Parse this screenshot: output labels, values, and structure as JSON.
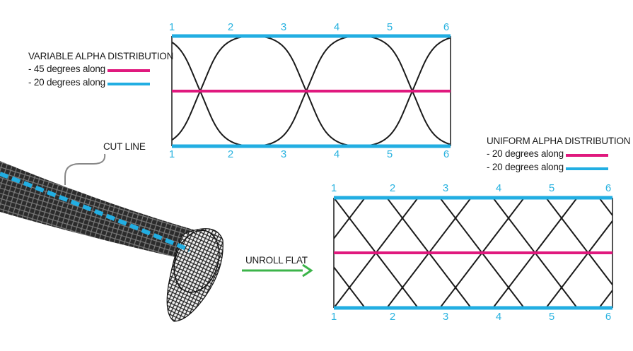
{
  "colors": {
    "accent_magenta": "#e0197e",
    "accent_cyan": "#22aee2",
    "arrow_green": "#3cb44a",
    "line_black": "#1a1a1a"
  },
  "variable": {
    "title": "VARIABLE ALPHA DISTRIBUTION",
    "legend": [
      {
        "label": "- 45 degrees along",
        "color": "#e0197e"
      },
      {
        "label": "- 20 degrees along",
        "color": "#22aee2"
      }
    ],
    "ticks_top": [
      "1",
      "2",
      "3",
      "4",
      "5",
      "6"
    ],
    "ticks_bottom": [
      "1",
      "2",
      "3",
      "4",
      "5",
      "6"
    ]
  },
  "uniform": {
    "title": "UNIFORM ALPHA DISTRIBUTION",
    "legend": [
      {
        "label": "- 20 degrees along",
        "color": "#e0197e"
      },
      {
        "label": "- 20 degrees along",
        "color": "#22aee2"
      }
    ],
    "ticks_top": [
      "1",
      "2",
      "3",
      "4",
      "5",
      "6"
    ],
    "ticks_bottom": [
      "1",
      "2",
      "3",
      "4",
      "5",
      "6"
    ]
  },
  "cut_line_label": "CUT LINE",
  "unroll_label": "UNROLL FLAT"
}
